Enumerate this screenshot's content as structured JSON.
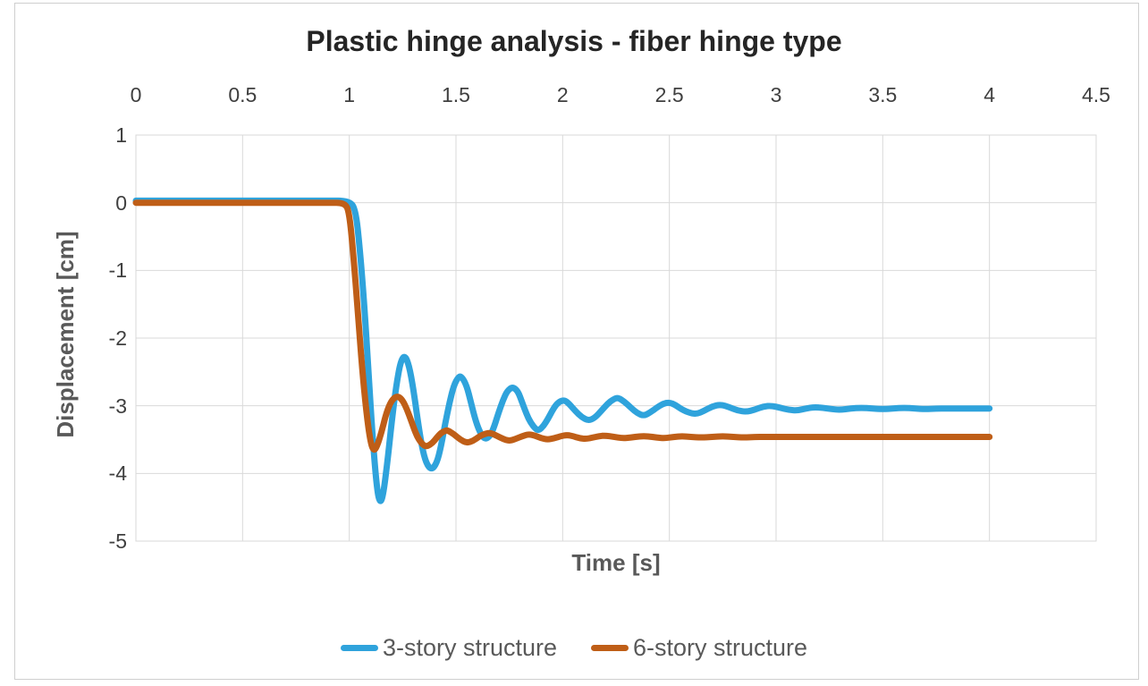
{
  "colors": {
    "series_blue": "#2FA3DC",
    "series_orange": "#BF5E17",
    "gridline": "#D9D9D9",
    "plot_border": "#D9D9D9",
    "tick_text": "#3F3F3F",
    "axis_title_text": "#595959",
    "title_text": "#252525",
    "chart_frame_border": "#CFCFCF",
    "background": "#FFFFFF"
  },
  "chart_data": {
    "type": "line",
    "title": "Plastic hinge analysis - fiber hinge type",
    "xlabel": "Time [s]",
    "ylabel": "Displacement [cm]",
    "xlim": [
      0,
      4.5
    ],
    "ylim": [
      -5,
      1
    ],
    "x_axis_position": "top",
    "grid": true,
    "legend_position": "bottom",
    "x_tick_values": [
      0,
      0.5,
      1,
      1.5,
      2,
      2.5,
      3,
      3.5,
      4,
      4.5
    ],
    "y_tick_values": [
      1,
      0,
      -1,
      -2,
      -3,
      -4,
      -5
    ],
    "series": [
      {
        "name": "3-story structure",
        "color": "#2FA3DC",
        "settled_value": -3.04,
        "points": [
          [
            0,
            0.03
          ],
          [
            0.3,
            0.03
          ],
          [
            0.6,
            0.03
          ],
          [
            0.9,
            0.03
          ],
          [
            1.0,
            0.03
          ],
          [
            1.03,
            -0.1
          ],
          [
            1.05,
            -0.7
          ],
          [
            1.07,
            -1.5
          ],
          [
            1.09,
            -2.5
          ],
          [
            1.11,
            -3.5
          ],
          [
            1.13,
            -4.25
          ],
          [
            1.145,
            -4.45
          ],
          [
            1.16,
            -4.3
          ],
          [
            1.18,
            -3.8
          ],
          [
            1.2,
            -3.2
          ],
          [
            1.22,
            -2.7
          ],
          [
            1.24,
            -2.35
          ],
          [
            1.26,
            -2.25
          ],
          [
            1.28,
            -2.4
          ],
          [
            1.3,
            -2.75
          ],
          [
            1.32,
            -3.2
          ],
          [
            1.34,
            -3.6
          ],
          [
            1.36,
            -3.85
          ],
          [
            1.385,
            -3.95
          ],
          [
            1.41,
            -3.85
          ],
          [
            1.43,
            -3.6
          ],
          [
            1.45,
            -3.25
          ],
          [
            1.47,
            -2.95
          ],
          [
            1.49,
            -2.7
          ],
          [
            1.51,
            -2.58
          ],
          [
            1.525,
            -2.56
          ],
          [
            1.55,
            -2.7
          ],
          [
            1.57,
            -2.95
          ],
          [
            1.59,
            -3.2
          ],
          [
            1.61,
            -3.38
          ],
          [
            1.635,
            -3.5
          ],
          [
            1.66,
            -3.45
          ],
          [
            1.68,
            -3.3
          ],
          [
            1.7,
            -3.1
          ],
          [
            1.72,
            -2.92
          ],
          [
            1.74,
            -2.78
          ],
          [
            1.765,
            -2.72
          ],
          [
            1.79,
            -2.78
          ],
          [
            1.81,
            -2.95
          ],
          [
            1.83,
            -3.12
          ],
          [
            1.85,
            -3.25
          ],
          [
            1.875,
            -3.35
          ],
          [
            1.89,
            -3.36
          ],
          [
            1.91,
            -3.3
          ],
          [
            1.93,
            -3.2
          ],
          [
            1.95,
            -3.08
          ],
          [
            1.97,
            -2.98
          ],
          [
            1.99,
            -2.93
          ],
          [
            2.01,
            -2.92
          ],
          [
            2.03,
            -2.97
          ],
          [
            2.06,
            -3.08
          ],
          [
            2.09,
            -3.17
          ],
          [
            2.12,
            -3.22
          ],
          [
            2.15,
            -3.18
          ],
          [
            2.18,
            -3.08
          ],
          [
            2.21,
            -2.97
          ],
          [
            2.24,
            -2.9
          ],
          [
            2.26,
            -2.88
          ],
          [
            2.29,
            -2.94
          ],
          [
            2.32,
            -3.03
          ],
          [
            2.35,
            -3.11
          ],
          [
            2.38,
            -3.15
          ],
          [
            2.41,
            -3.1
          ],
          [
            2.44,
            -3.03
          ],
          [
            2.47,
            -2.97
          ],
          [
            2.5,
            -2.95
          ],
          [
            2.53,
            -2.99
          ],
          [
            2.56,
            -3.06
          ],
          [
            2.6,
            -3.11
          ],
          [
            2.63,
            -3.12
          ],
          [
            2.66,
            -3.08
          ],
          [
            2.7,
            -3.01
          ],
          [
            2.74,
            -2.98
          ],
          [
            2.78,
            -3.02
          ],
          [
            2.82,
            -3.07
          ],
          [
            2.86,
            -3.09
          ],
          [
            2.9,
            -3.06
          ],
          [
            2.94,
            -3.01
          ],
          [
            2.98,
            -3.0
          ],
          [
            3.02,
            -3.03
          ],
          [
            3.06,
            -3.06
          ],
          [
            3.1,
            -3.07
          ],
          [
            3.14,
            -3.04
          ],
          [
            3.18,
            -3.02
          ],
          [
            3.22,
            -3.03
          ],
          [
            3.26,
            -3.05
          ],
          [
            3.3,
            -3.06
          ],
          [
            3.35,
            -3.04
          ],
          [
            3.4,
            -3.03
          ],
          [
            3.45,
            -3.04
          ],
          [
            3.5,
            -3.05
          ],
          [
            3.55,
            -3.04
          ],
          [
            3.6,
            -3.03
          ],
          [
            3.65,
            -3.04
          ],
          [
            3.7,
            -3.05
          ],
          [
            3.75,
            -3.04
          ],
          [
            3.8,
            -3.04
          ],
          [
            3.85,
            -3.04
          ],
          [
            3.9,
            -3.04
          ],
          [
            3.95,
            -3.04
          ],
          [
            4.0,
            -3.04
          ]
        ]
      },
      {
        "name": "6-story structure",
        "color": "#BF5E17",
        "settled_value": -3.46,
        "points": [
          [
            0,
            0
          ],
          [
            0.3,
            0
          ],
          [
            0.6,
            0
          ],
          [
            0.9,
            0
          ],
          [
            0.98,
            0
          ],
          [
            1.0,
            -0.15
          ],
          [
            1.02,
            -0.8
          ],
          [
            1.04,
            -1.6
          ],
          [
            1.06,
            -2.45
          ],
          [
            1.08,
            -3.1
          ],
          [
            1.1,
            -3.55
          ],
          [
            1.115,
            -3.67
          ],
          [
            1.13,
            -3.6
          ],
          [
            1.15,
            -3.4
          ],
          [
            1.17,
            -3.15
          ],
          [
            1.19,
            -2.97
          ],
          [
            1.21,
            -2.88
          ],
          [
            1.23,
            -2.86
          ],
          [
            1.25,
            -2.92
          ],
          [
            1.27,
            -3.05
          ],
          [
            1.29,
            -3.22
          ],
          [
            1.31,
            -3.4
          ],
          [
            1.33,
            -3.52
          ],
          [
            1.35,
            -3.59
          ],
          [
            1.365,
            -3.6
          ],
          [
            1.39,
            -3.55
          ],
          [
            1.41,
            -3.47
          ],
          [
            1.43,
            -3.4
          ],
          [
            1.45,
            -3.37
          ],
          [
            1.46,
            -3.36
          ],
          [
            1.49,
            -3.42
          ],
          [
            1.52,
            -3.5
          ],
          [
            1.55,
            -3.55
          ],
          [
            1.58,
            -3.52
          ],
          [
            1.61,
            -3.45
          ],
          [
            1.64,
            -3.41
          ],
          [
            1.66,
            -3.4
          ],
          [
            1.69,
            -3.44
          ],
          [
            1.72,
            -3.49
          ],
          [
            1.75,
            -3.52
          ],
          [
            1.78,
            -3.49
          ],
          [
            1.81,
            -3.45
          ],
          [
            1.84,
            -3.42
          ],
          [
            1.87,
            -3.44
          ],
          [
            1.9,
            -3.48
          ],
          [
            1.93,
            -3.5
          ],
          [
            1.96,
            -3.48
          ],
          [
            1.99,
            -3.45
          ],
          [
            2.02,
            -3.43
          ],
          [
            2.05,
            -3.45
          ],
          [
            2.08,
            -3.48
          ],
          [
            2.11,
            -3.49
          ],
          [
            2.14,
            -3.47
          ],
          [
            2.17,
            -3.45
          ],
          [
            2.2,
            -3.44
          ],
          [
            2.24,
            -3.46
          ],
          [
            2.28,
            -3.48
          ],
          [
            2.32,
            -3.47
          ],
          [
            2.36,
            -3.45
          ],
          [
            2.4,
            -3.45
          ],
          [
            2.44,
            -3.47
          ],
          [
            2.48,
            -3.48
          ],
          [
            2.52,
            -3.46
          ],
          [
            2.56,
            -3.45
          ],
          [
            2.6,
            -3.46
          ],
          [
            2.65,
            -3.47
          ],
          [
            2.7,
            -3.46
          ],
          [
            2.75,
            -3.45
          ],
          [
            2.8,
            -3.46
          ],
          [
            2.85,
            -3.47
          ],
          [
            2.9,
            -3.46
          ],
          [
            2.95,
            -3.46
          ],
          [
            3.0,
            -3.46
          ],
          [
            3.1,
            -3.46
          ],
          [
            3.2,
            -3.46
          ],
          [
            3.3,
            -3.46
          ],
          [
            3.4,
            -3.46
          ],
          [
            3.5,
            -3.46
          ],
          [
            3.6,
            -3.46
          ],
          [
            3.7,
            -3.46
          ],
          [
            3.8,
            -3.46
          ],
          [
            3.9,
            -3.46
          ],
          [
            4.0,
            -3.46
          ]
        ]
      }
    ]
  }
}
